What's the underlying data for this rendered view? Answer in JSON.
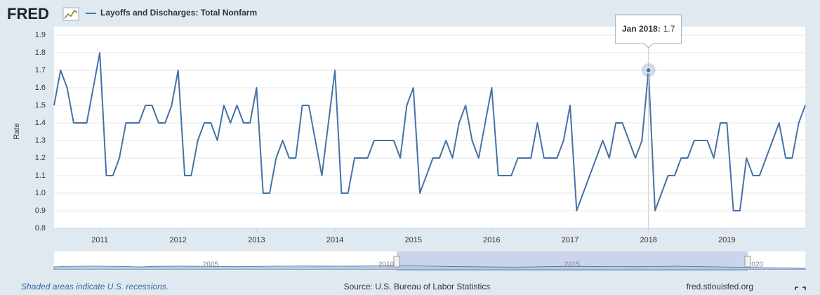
{
  "logo": "FRED",
  "chart_data": {
    "type": "line",
    "y_label": "Rate",
    "x": [
      "2010-06",
      "2010-07",
      "2010-08",
      "2010-09",
      "2010-10",
      "2010-11",
      "2010-12",
      "2011-01",
      "2011-02",
      "2011-03",
      "2011-04",
      "2011-05",
      "2011-06",
      "2011-07",
      "2011-08",
      "2011-09",
      "2011-10",
      "2011-11",
      "2011-12",
      "2012-01",
      "2012-02",
      "2012-03",
      "2012-04",
      "2012-05",
      "2012-06",
      "2012-07",
      "2012-08",
      "2012-09",
      "2012-10",
      "2012-11",
      "2012-12",
      "2013-01",
      "2013-02",
      "2013-03",
      "2013-04",
      "2013-05",
      "2013-06",
      "2013-07",
      "2013-08",
      "2013-09",
      "2013-10",
      "2013-11",
      "2013-12",
      "2014-01",
      "2014-02",
      "2014-03",
      "2014-04",
      "2014-05",
      "2014-06",
      "2014-07",
      "2014-08",
      "2014-09",
      "2014-10",
      "2014-11",
      "2014-12",
      "2015-01",
      "2015-02",
      "2015-03",
      "2015-04",
      "2015-05",
      "2015-06",
      "2015-07",
      "2015-08",
      "2015-09",
      "2015-10",
      "2015-11",
      "2015-12",
      "2016-01",
      "2016-02",
      "2016-03",
      "2016-04",
      "2016-05",
      "2016-06",
      "2016-07",
      "2016-08",
      "2016-09",
      "2016-10",
      "2016-11",
      "2016-12",
      "2017-01",
      "2017-02",
      "2017-03",
      "2017-04",
      "2017-05",
      "2017-06",
      "2017-07",
      "2017-08",
      "2017-09",
      "2017-10",
      "2017-11",
      "2017-12",
      "2018-01",
      "2018-02",
      "2018-03",
      "2018-04",
      "2018-05",
      "2018-06",
      "2018-07",
      "2018-08",
      "2018-09",
      "2018-10",
      "2018-11",
      "2018-12",
      "2019-01",
      "2019-02",
      "2019-03",
      "2019-04",
      "2019-05",
      "2019-06",
      "2019-07",
      "2019-08",
      "2019-09",
      "2019-10",
      "2019-11",
      "2019-12",
      "2020-01"
    ],
    "series": [
      {
        "name": "Layoffs and Discharges: Total Nonfarm",
        "color": "#4572a7",
        "values": [
          1.5,
          1.7,
          1.6,
          1.4,
          1.4,
          1.4,
          1.6,
          1.8,
          1.1,
          1.1,
          1.2,
          1.4,
          1.4,
          1.4,
          1.5,
          1.5,
          1.4,
          1.4,
          1.5,
          1.7,
          1.1,
          1.1,
          1.3,
          1.4,
          1.4,
          1.3,
          1.5,
          1.4,
          1.5,
          1.4,
          1.4,
          1.6,
          1.0,
          1.0,
          1.2,
          1.3,
          1.2,
          1.2,
          1.5,
          1.5,
          1.3,
          1.1,
          1.4,
          1.7,
          1.0,
          1.0,
          1.2,
          1.2,
          1.2,
          1.3,
          1.3,
          1.3,
          1.3,
          1.2,
          1.5,
          1.6,
          1.0,
          1.1,
          1.2,
          1.2,
          1.3,
          1.2,
          1.4,
          1.5,
          1.3,
          1.2,
          1.4,
          1.6,
          1.1,
          1.1,
          1.1,
          1.2,
          1.2,
          1.2,
          1.4,
          1.2,
          1.2,
          1.2,
          1.3,
          1.5,
          0.9,
          1.0,
          1.1,
          1.2,
          1.3,
          1.2,
          1.4,
          1.4,
          1.3,
          1.2,
          1.3,
          1.7,
          0.9,
          1.0,
          1.1,
          1.1,
          1.2,
          1.2,
          1.3,
          1.3,
          1.3,
          1.2,
          1.4,
          1.4,
          0.9,
          0.9,
          1.2,
          1.1,
          1.1,
          1.2,
          1.3,
          1.4,
          1.2,
          1.2,
          1.4,
          1.5
        ]
      }
    ],
    "ylim": [
      0.8,
      1.9
    ],
    "yticks": [
      0.8,
      0.9,
      {
        "value": 1,
        "label": "1.0"
      },
      1.1,
      1.2,
      1.3,
      1.4,
      1.5,
      1.6,
      1.7,
      1.8,
      1.9
    ],
    "xticks": [
      2011,
      2012,
      2013,
      2014,
      2015,
      2016,
      2017,
      2018,
      2019
    ],
    "grid": true,
    "tooltip": {
      "label": "Jan 2018:",
      "value": 1.7
    }
  },
  "navigator": {
    "labels": [
      "2005",
      "2010",
      "2015",
      "2020"
    ]
  },
  "footer": {
    "recessions": "Shaded areas indicate U.S. recessions.",
    "source": "Source: U.S. Bureau of Labor Statistics",
    "site": "fred.stlouisfed.org"
  }
}
